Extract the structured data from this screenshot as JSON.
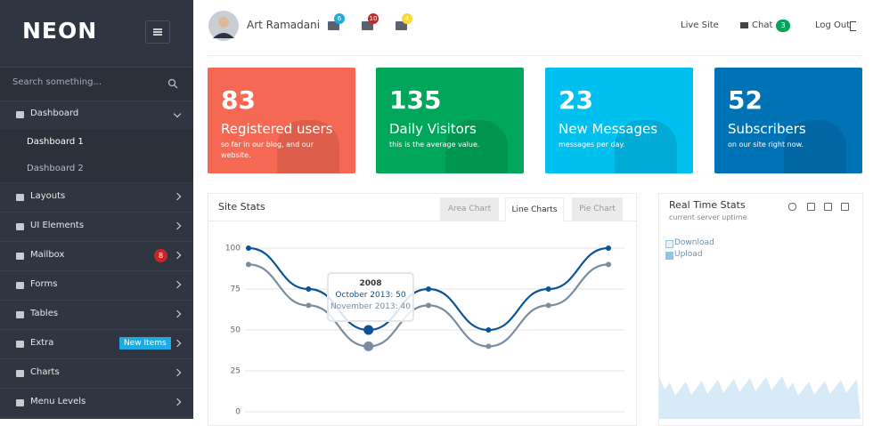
{
  "sidebar": {
    "logo": "NEON",
    "search_placeholder": "Search something...",
    "menu": [
      {
        "label": "Dashboard",
        "children": [
          "Dashboard 1",
          "Dashboard 2"
        ]
      },
      {
        "label": "Layouts"
      },
      {
        "label": "UI Elements"
      },
      {
        "label": "Mailbox",
        "badge": "8"
      },
      {
        "label": "Forms"
      },
      {
        "label": "Tables"
      },
      {
        "label": "Extra",
        "badge": "New Items"
      },
      {
        "label": "Charts"
      },
      {
        "label": "Menu Levels"
      }
    ]
  },
  "header": {
    "user": "Art Ramadani",
    "notifications": [
      "6",
      "10",
      "4"
    ],
    "links": [
      "Live Site",
      "Chat",
      "Log Out"
    ],
    "chat_badge": "3"
  },
  "tiles": [
    {
      "number": "83",
      "title": "Registered users",
      "text": "so far in our blog, and our website.",
      "color": "#f56954"
    },
    {
      "number": "135",
      "title": "Daily Visitors",
      "text": "this is the average value.",
      "color": "#00a65a"
    },
    {
      "number": "23",
      "title": "New Messages",
      "text": "messages per day.",
      "color": "#00c0ef"
    },
    {
      "number": "52",
      "title": "Subscribers",
      "text": "on our site right now.",
      "color": "#0073b7"
    }
  ],
  "site_stats": {
    "title": "Site Stats",
    "tabs": [
      "Area Chart",
      "Line Charts",
      "Pie Chart"
    ],
    "active_tab": 1
  },
  "chart_data": {
    "type": "line",
    "categories": [
      null,
      null,
      "2008",
      null,
      null,
      null,
      null
    ],
    "series": [
      {
        "name": "October 2013",
        "color": "#0b5394",
        "values": [
          100,
          75,
          50,
          75,
          50,
          75,
          100
        ]
      },
      {
        "name": "November 2013",
        "color": "#7a8da0",
        "values": [
          90,
          65,
          40,
          65,
          40,
          65,
          90
        ]
      }
    ],
    "ylim": [
      0,
      100
    ],
    "yticks": [
      0,
      25,
      50,
      75,
      100
    ],
    "grid": true,
    "tooltip": {
      "lines": [
        "October 2013: 50",
        "November 2013: 40"
      ]
    }
  },
  "realtime": {
    "title": "Real Time Stats",
    "subtitle": "current server uptime",
    "legend": [
      "Download",
      "Upload"
    ]
  }
}
